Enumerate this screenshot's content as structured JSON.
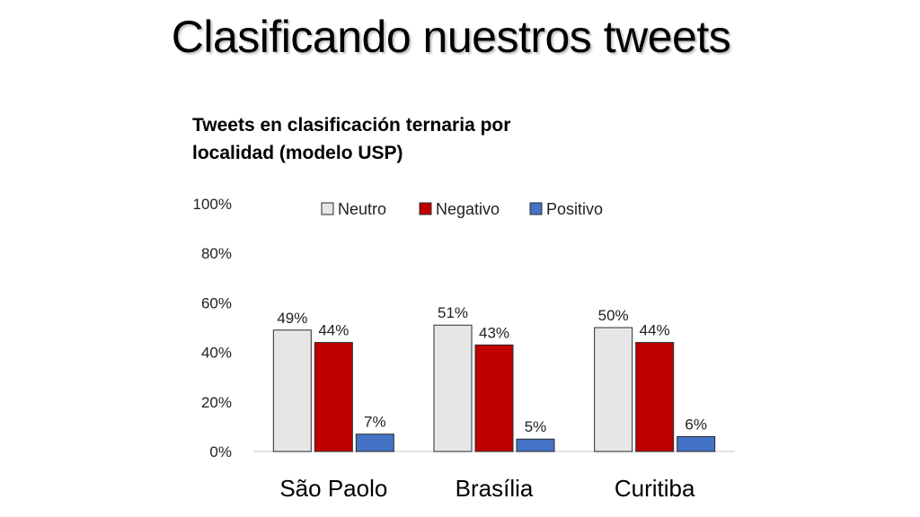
{
  "slide": {
    "title": "Clasificando nuestros tweets"
  },
  "chart_data": {
    "type": "bar",
    "title": "Tweets en clasificación ternaria por localidad (modelo USP)",
    "categories": [
      "São Paolo",
      "Brasília",
      "Curitiba"
    ],
    "series": [
      {
        "name": "Neutro",
        "values": [
          49,
          51,
          50
        ],
        "labels": [
          "49%",
          "51%",
          "50%"
        ],
        "color": "#e6e6e6"
      },
      {
        "name": "Negativo",
        "values": [
          44,
          43,
          44
        ],
        "labels": [
          "44%",
          "43%",
          "44%"
        ],
        "color": "#c00000"
      },
      {
        "name": "Positivo",
        "values": [
          7,
          5,
          6
        ],
        "labels": [
          "7%",
          "5%",
          "6%"
        ],
        "color": "#4472c4"
      }
    ],
    "ylim": [
      0,
      100
    ],
    "yticks": [
      0,
      20,
      40,
      60,
      80,
      100
    ],
    "ytick_labels": [
      "0%",
      "20%",
      "40%",
      "60%",
      "80%",
      "100%"
    ],
    "xlabel": "",
    "ylabel": "",
    "grid": false,
    "legend_position": "top"
  }
}
